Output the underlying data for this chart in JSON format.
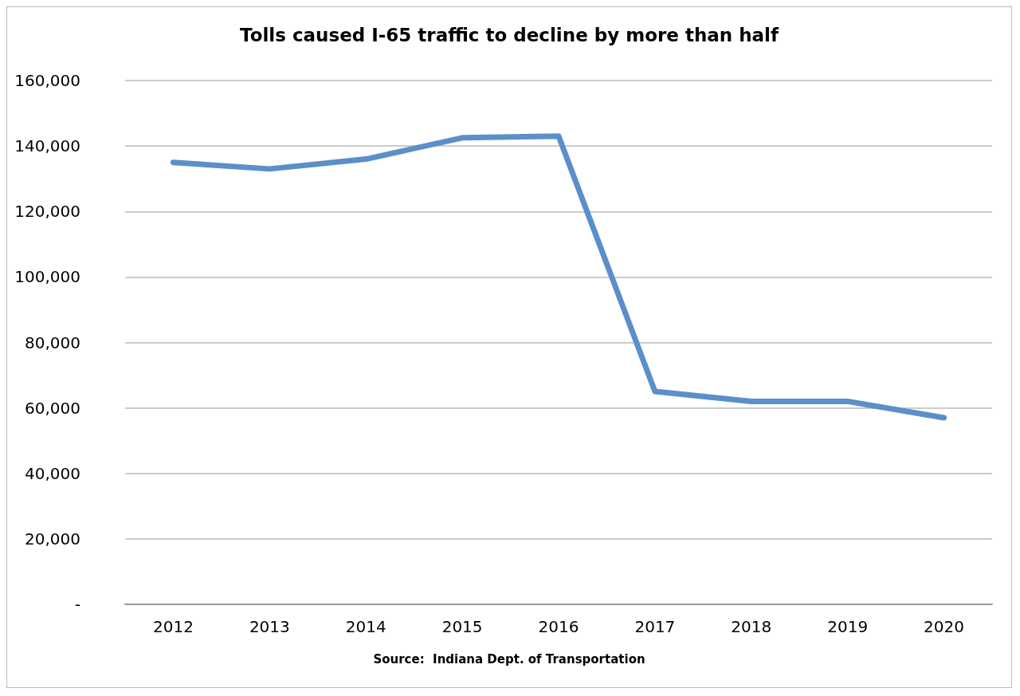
{
  "chart_data": {
    "type": "line",
    "title": "Tolls caused I-65 traffic to decline by more than half",
    "categories": [
      "2012",
      "2013",
      "2014",
      "2015",
      "2016",
      "2017",
      "2018",
      "2019",
      "2020"
    ],
    "series": [
      {
        "color": "#5b8fc9",
        "values": [
          135000,
          133000,
          136000,
          142500,
          143000,
          65000,
          62000,
          62000,
          57000
        ]
      }
    ],
    "ylim": [
      0,
      160000
    ],
    "yticks": [
      {
        "value": 0,
        "label": "-"
      },
      {
        "value": 20000,
        "label": "20,000"
      },
      {
        "value": 40000,
        "label": "40,000"
      },
      {
        "value": 60000,
        "label": "60,000"
      },
      {
        "value": 80000,
        "label": "80,000"
      },
      {
        "value": 100000,
        "label": "100,000"
      },
      {
        "value": 120000,
        "label": "120,000"
      },
      {
        "value": 140000,
        "label": "140,000"
      },
      {
        "value": 160000,
        "label": "160,000"
      }
    ],
    "grid": "y",
    "marker": "none",
    "line_style": "solid",
    "annotations": [
      "Source:  Indiana Dept. of Transportation"
    ]
  }
}
